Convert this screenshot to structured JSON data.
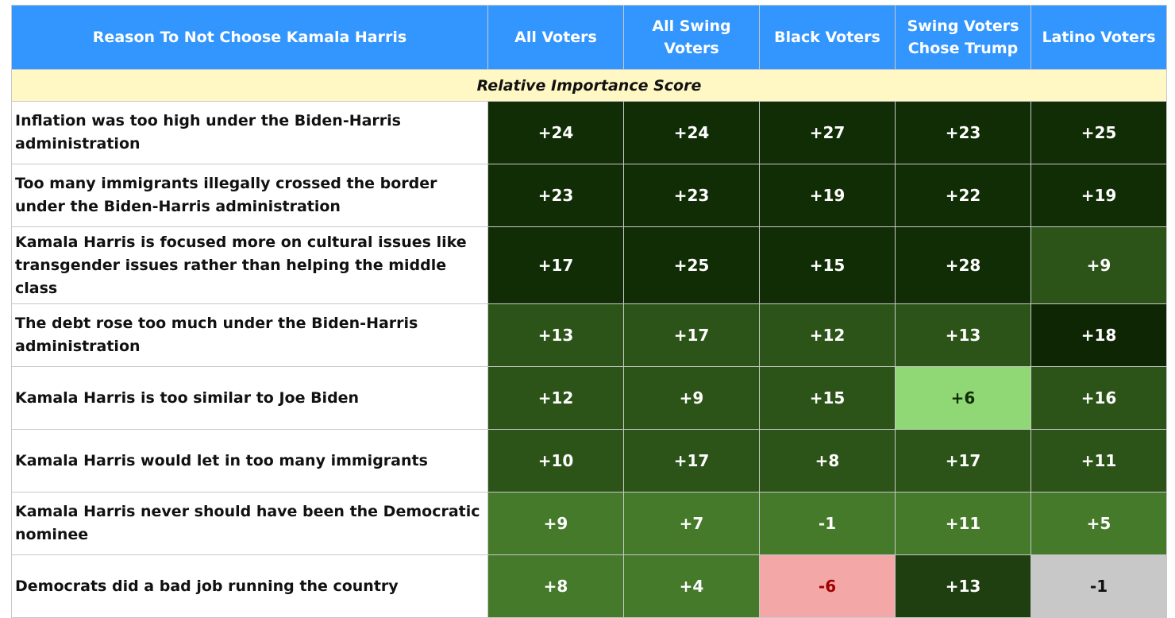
{
  "table": {
    "headers": [
      "Reason To Not Choose Kamala Harris",
      "All Voters",
      "All Swing Voters",
      "Black Voters",
      "Swing Voters Chose Trump",
      "Latino Voters"
    ],
    "subheader": "Relative Importance Score",
    "rows": [
      {
        "reason": "Inflation was too high under the Biden-Harris administration",
        "cells": [
          {
            "v": "+24",
            "bg": "#112d06",
            "fg": "#ffffff"
          },
          {
            "v": "+24",
            "bg": "#112d06",
            "fg": "#ffffff"
          },
          {
            "v": "+27",
            "bg": "#112d06",
            "fg": "#ffffff"
          },
          {
            "v": "+23",
            "bg": "#112d06",
            "fg": "#ffffff"
          },
          {
            "v": "+25",
            "bg": "#112d06",
            "fg": "#ffffff"
          }
        ]
      },
      {
        "reason": "Too many immigrants illegally crossed the border under the Biden-Harris administration",
        "cells": [
          {
            "v": "+23",
            "bg": "#112d06",
            "fg": "#ffffff"
          },
          {
            "v": "+23",
            "bg": "#112d06",
            "fg": "#ffffff"
          },
          {
            "v": "+19",
            "bg": "#112d06",
            "fg": "#ffffff"
          },
          {
            "v": "+22",
            "bg": "#112d06",
            "fg": "#ffffff"
          },
          {
            "v": "+19",
            "bg": "#112d06",
            "fg": "#ffffff"
          }
        ]
      },
      {
        "reason": "Kamala Harris is focused more on cultural issues like transgender issues rather than helping the middle class",
        "cells": [
          {
            "v": "+17",
            "bg": "#112d06",
            "fg": "#ffffff"
          },
          {
            "v": "+25",
            "bg": "#112d06",
            "fg": "#ffffff"
          },
          {
            "v": "+15",
            "bg": "#112d06",
            "fg": "#ffffff"
          },
          {
            "v": "+28",
            "bg": "#112d06",
            "fg": "#ffffff"
          },
          {
            "v": "+9",
            "bg": "#2c5418",
            "fg": "#ffffff"
          }
        ]
      },
      {
        "reason": "The debt rose too much under the Biden-Harris administration",
        "cells": [
          {
            "v": "+13",
            "bg": "#2c5418",
            "fg": "#ffffff"
          },
          {
            "v": "+17",
            "bg": "#2c5418",
            "fg": "#ffffff"
          },
          {
            "v": "+12",
            "bg": "#2c5418",
            "fg": "#ffffff"
          },
          {
            "v": "+13",
            "bg": "#2c5418",
            "fg": "#ffffff"
          },
          {
            "v": "+18",
            "bg": "#0f2605",
            "fg": "#ffffff"
          }
        ]
      },
      {
        "reason": "Kamala Harris is too similar to Joe Biden",
        "cells": [
          {
            "v": "+12",
            "bg": "#2c5418",
            "fg": "#ffffff"
          },
          {
            "v": "+9",
            "bg": "#2c5418",
            "fg": "#ffffff"
          },
          {
            "v": "+15",
            "bg": "#2c5418",
            "fg": "#ffffff"
          },
          {
            "v": "+6",
            "bg": "#90d876",
            "fg": "#112d06"
          },
          {
            "v": "+16",
            "bg": "#2c5418",
            "fg": "#ffffff"
          }
        ]
      },
      {
        "reason": "Kamala Harris would let in too many immigrants",
        "cells": [
          {
            "v": "+10",
            "bg": "#2c5418",
            "fg": "#ffffff"
          },
          {
            "v": "+17",
            "bg": "#2c5418",
            "fg": "#ffffff"
          },
          {
            "v": "+8",
            "bg": "#2c5418",
            "fg": "#ffffff"
          },
          {
            "v": "+17",
            "bg": "#2c5418",
            "fg": "#ffffff"
          },
          {
            "v": "+11",
            "bg": "#2c5418",
            "fg": "#ffffff"
          }
        ]
      },
      {
        "reason": "Kamala Harris never should have been the Democratic nominee",
        "cells": [
          {
            "v": "+9",
            "bg": "#457a2b",
            "fg": "#ffffff"
          },
          {
            "v": "+7",
            "bg": "#457a2b",
            "fg": "#ffffff"
          },
          {
            "v": "-1",
            "bg": "#457a2b",
            "fg": "#ffffff"
          },
          {
            "v": "+11",
            "bg": "#457a2b",
            "fg": "#ffffff"
          },
          {
            "v": "+5",
            "bg": "#457a2b",
            "fg": "#ffffff"
          }
        ]
      },
      {
        "reason": "Democrats did a bad job running the country",
        "cells": [
          {
            "v": "+8",
            "bg": "#457a2b",
            "fg": "#ffffff"
          },
          {
            "v": "+4",
            "bg": "#457a2b",
            "fg": "#ffffff"
          },
          {
            "v": "-6",
            "bg": "#f4a7a7",
            "fg": "#a00000"
          },
          {
            "v": "+13",
            "bg": "#1f3f10",
            "fg": "#ffffff"
          },
          {
            "v": "-1",
            "bg": "#c8c8c8",
            "fg": "#111111"
          }
        ]
      }
    ]
  }
}
